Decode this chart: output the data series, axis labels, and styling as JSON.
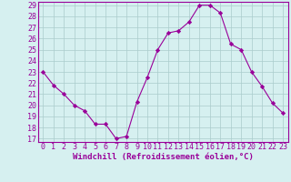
{
  "x": [
    0,
    1,
    2,
    3,
    4,
    5,
    6,
    7,
    8,
    9,
    10,
    11,
    12,
    13,
    14,
    15,
    16,
    17,
    18,
    19,
    20,
    21,
    22,
    23
  ],
  "y": [
    23,
    21.8,
    21,
    20,
    19.5,
    18.3,
    18.3,
    17,
    17.2,
    20.3,
    22.5,
    25,
    26.5,
    26.7,
    27.5,
    29,
    29,
    28.3,
    25.5,
    25,
    23,
    21.7,
    20.2,
    19.3
  ],
  "line_color": "#990099",
  "marker": "D",
  "marker_size": 2.2,
  "bg_color": "#d6f0f0",
  "grid_color": "#aacccc",
  "xlabel": "Windchill (Refroidissement éolien,°C)",
  "xlabel_color": "#990099",
  "tick_color": "#990099",
  "spine_color": "#990099",
  "ylim_min": 17,
  "ylim_max": 29,
  "yticks": [
    17,
    18,
    19,
    20,
    21,
    22,
    23,
    24,
    25,
    26,
    27,
    28,
    29
  ],
  "xticks": [
    0,
    1,
    2,
    3,
    4,
    5,
    6,
    7,
    8,
    9,
    10,
    11,
    12,
    13,
    14,
    15,
    16,
    17,
    18,
    19,
    20,
    21,
    22,
    23
  ],
  "axis_label_fontsize": 6.5,
  "tick_fontsize": 6.0,
  "linewidth": 0.8
}
